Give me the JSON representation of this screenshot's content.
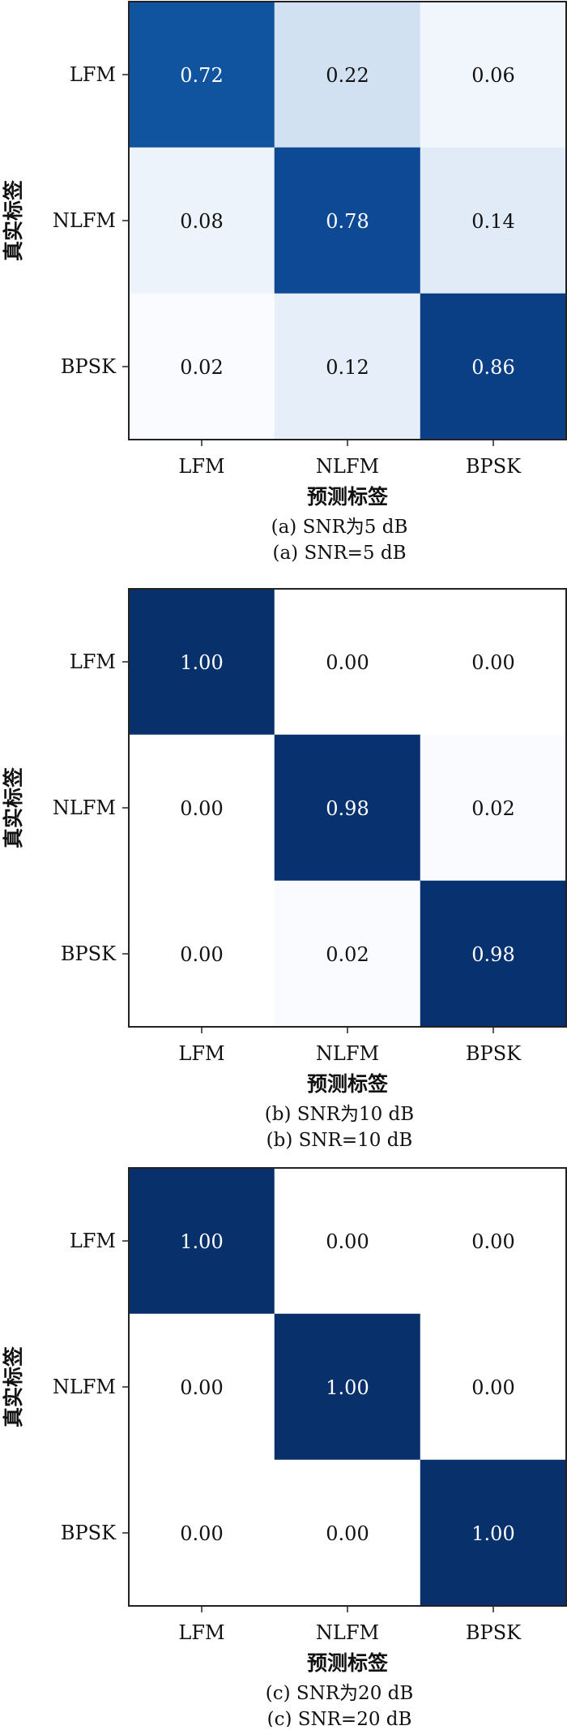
{
  "chart_data": [
    {
      "type": "heatmap",
      "x_categories": [
        "LFM",
        "NLFM",
        "BPSK"
      ],
      "y_categories": [
        "LFM",
        "NLFM",
        "BPSK"
      ],
      "values": [
        [
          0.72,
          0.22,
          0.06
        ],
        [
          0.08,
          0.78,
          0.14
        ],
        [
          0.02,
          0.12,
          0.86
        ]
      ],
      "xlabel": "预测标签",
      "ylabel": "真实标签",
      "caption_cn": "(a) SNR为5 dB",
      "caption_en": "(a) SNR=5 dB"
    },
    {
      "type": "heatmap",
      "x_categories": [
        "LFM",
        "NLFM",
        "BPSK"
      ],
      "y_categories": [
        "LFM",
        "NLFM",
        "BPSK"
      ],
      "values": [
        [
          1.0,
          0.0,
          0.0
        ],
        [
          0.0,
          0.98,
          0.02
        ],
        [
          0.0,
          0.02,
          0.98
        ]
      ],
      "xlabel": "预测标签",
      "ylabel": "真实标签",
      "caption_cn": "(b) SNR为10 dB",
      "caption_en": "(b) SNR=10 dB"
    },
    {
      "type": "heatmap",
      "x_categories": [
        "LFM",
        "NLFM",
        "BPSK"
      ],
      "y_categories": [
        "LFM",
        "NLFM",
        "BPSK"
      ],
      "values": [
        [
          1.0,
          0.0,
          0.0
        ],
        [
          0.0,
          1.0,
          0.0
        ],
        [
          0.0,
          0.0,
          1.0
        ]
      ],
      "xlabel": "预测标签",
      "ylabel": "真实标签",
      "caption_cn": "(c) SNR为20 dB",
      "caption_en": "(c) SNR=20 dB"
    }
  ],
  "colors": {
    "low": "#ffffff",
    "high": "#08306b",
    "text_dark": "#111111",
    "text_light": "#ffffff"
  }
}
